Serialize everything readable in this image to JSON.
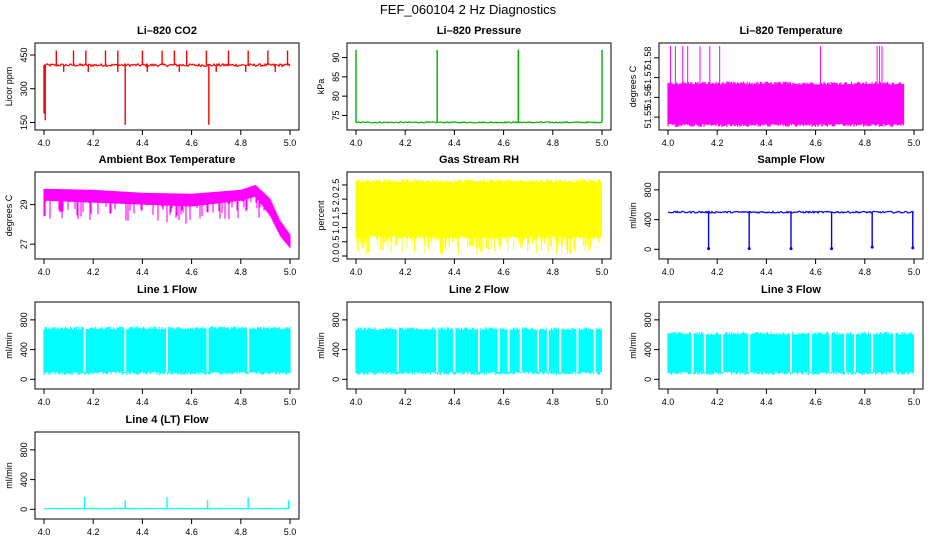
{
  "title": "FEF_060104  2 Hz Diagnostics",
  "colors": {
    "axis": "#000000"
  },
  "chart_data": [
    {
      "type": "line",
      "title": "Li–820 CO2",
      "ylabel": "Licor ppm",
      "color": "#ff0000",
      "x_ticks": [
        "4.0",
        "4.2",
        "4.4",
        "4.6",
        "4.8",
        "5.0"
      ],
      "xlim": [
        4.0,
        5.0
      ],
      "y_ticks": [
        150,
        300,
        450
      ],
      "y_tick_labels": [
        "150",
        "300",
        "450"
      ],
      "ylim": [
        130,
        490
      ],
      "series": [
        {
          "baseline": 405,
          "noise": 6,
          "spikes_up": [
            4.05,
            4.12,
            4.17,
            4.25,
            4.3,
            4.4,
            4.48,
            4.53,
            4.58,
            4.66,
            4.75,
            4.83,
            4.91,
            4.99
          ],
          "spike_up_to": 470,
          "dips": [
            [
              4.005,
              160
            ],
            [
              4.33,
              140
            ],
            [
              4.67,
              140
            ],
            [
              4.0,
              190
            ]
          ],
          "small_dips": [
            4.08,
            4.18,
            4.3,
            4.42,
            4.55,
            4.7,
            4.82,
            4.94
          ],
          "small_dip_to": 375
        }
      ]
    },
    {
      "type": "line",
      "title": "Li–820 Pressure",
      "ylabel": "kPa",
      "color": "#00b000",
      "x_ticks": [
        "4.0",
        "4.2",
        "4.4",
        "4.6",
        "4.8",
        "5.0"
      ],
      "xlim": [
        4.0,
        5.0
      ],
      "y_ticks": [
        75,
        80,
        85,
        90
      ],
      "y_tick_labels": [
        "75",
        "80",
        "85",
        "90"
      ],
      "ylim": [
        72,
        93
      ],
      "series": [
        {
          "baseline": 73.2,
          "noise": 0.15,
          "spikes_up": [
            4.0,
            4.33,
            4.66,
            4.66,
            5.0
          ],
          "spike_up_to": 92,
          "dips": [],
          "small_dips": [],
          "small_dip_to": 73
        }
      ]
    },
    {
      "type": "area",
      "title": "Li–820 Temperature",
      "ylabel": "degrees C",
      "color": "#ff00ff",
      "x_ticks": [
        "4.0",
        "4.2",
        "4.4",
        "4.6",
        "4.8",
        "5.0"
      ],
      "xlim": [
        4.0,
        5.0
      ],
      "y_ticks": [
        51.55,
        51.56,
        51.57,
        51.58
      ],
      "y_tick_labels": [
        "51.55",
        "51.56",
        "51.57",
        "51.58"
      ],
      "ylim": [
        51.545,
        51.586
      ],
      "band": {
        "x_from": 4.0,
        "x_to": 4.96,
        "low": 51.5465,
        "high": 51.5665
      },
      "series": [
        {
          "spikes_up": [
            4.01,
            4.03,
            4.06,
            4.08,
            4.13,
            4.17,
            4.21,
            4.62,
            4.85,
            4.86,
            4.87
          ],
          "spike_up_to": 51.586
        }
      ]
    },
    {
      "type": "line",
      "title": "Ambient Box Temperature",
      "ylabel": "degrees C",
      "color": "#ff00ff",
      "x_ticks": [
        "4.0",
        "4.2",
        "4.4",
        "4.6",
        "4.8",
        "5.0"
      ],
      "xlim": [
        4.0,
        5.0
      ],
      "y_ticks": [
        27,
        29
      ],
      "y_tick_labels": [
        "27",
        "29"
      ],
      "ylim": [
        26.4,
        30.5
      ],
      "envelope": [
        [
          4.0,
          29.8,
          29.2
        ],
        [
          4.2,
          29.75,
          29.1
        ],
        [
          4.4,
          29.6,
          29.0
        ],
        [
          4.6,
          29.55,
          28.9
        ],
        [
          4.8,
          29.75,
          29.2
        ],
        [
          4.86,
          30.0,
          29.4
        ],
        [
          4.92,
          29.3,
          28.4
        ],
        [
          4.96,
          28.2,
          27.4
        ],
        [
          5.0,
          27.5,
          26.8
        ]
      ],
      "dip_depth": 0.9
    },
    {
      "type": "area",
      "title": "Gas Stream RH",
      "ylabel": "percent",
      "color": "#ffff00",
      "x_ticks": [
        "4.0",
        "4.2",
        "4.4",
        "4.6",
        "4.8",
        "5.0"
      ],
      "xlim": [
        4.0,
        5.0
      ],
      "y_ticks": [
        0.0,
        0.5,
        1.0,
        1.5,
        2.0,
        2.5
      ],
      "y_tick_labels": [
        "0.0",
        "0.5",
        "1.0",
        "1.5",
        "2.0",
        "2.5"
      ],
      "ylim": [
        0.0,
        2.85
      ],
      "band": {
        "x_from": 4.0,
        "x_to": 5.0,
        "low": 0.7,
        "high": 2.6
      }
    },
    {
      "type": "line",
      "title": "Sample Flow",
      "ylabel": "ml/min",
      "color": "#0000ff",
      "x_ticks": [
        "4.0",
        "4.2",
        "4.4",
        "4.6",
        "4.8",
        "5.0"
      ],
      "xlim": [
        4.0,
        5.0
      ],
      "y_ticks": [
        0,
        400,
        800
      ],
      "y_tick_labels": [
        "0",
        "400",
        "800"
      ],
      "ylim": [
        -90,
        1000
      ],
      "series": [
        {
          "baseline": 500,
          "noise": 12,
          "dips": [
            [
              4.165,
              10
            ],
            [
              4.33,
              10
            ],
            [
              4.5,
              10
            ],
            [
              4.665,
              10
            ],
            [
              4.83,
              30
            ],
            [
              4.995,
              20
            ]
          ],
          "dip_to": 10
        }
      ]
    },
    {
      "type": "area",
      "title": "Line 1 Flow",
      "ylabel": "ml/min",
      "color": "#00ffff",
      "x_ticks": [
        "4.0",
        "4.2",
        "4.4",
        "4.6",
        "4.8",
        "5.0"
      ],
      "xlim": [
        4.0,
        5.0
      ],
      "y_ticks": [
        0,
        400,
        800
      ],
      "y_tick_labels": [
        "0",
        "400",
        "800"
      ],
      "ylim": [
        -90,
        1000
      ],
      "band": {
        "x_from": 4.0,
        "x_to": 5.0,
        "low": 100,
        "high": 670
      },
      "gaps": [
        4.165,
        4.33,
        4.5,
        4.665,
        4.83
      ]
    },
    {
      "type": "area",
      "title": "Line 2 Flow",
      "ylabel": "ml/min",
      "color": "#00ffff",
      "x_ticks": [
        "4.0",
        "4.2",
        "4.4",
        "4.6",
        "4.8",
        "5.0"
      ],
      "xlim": [
        4.0,
        5.0
      ],
      "y_ticks": [
        0,
        400,
        800
      ],
      "y_tick_labels": [
        "0",
        "400",
        "800"
      ],
      "ylim": [
        -90,
        1000
      ],
      "band": {
        "x_from": 4.0,
        "x_to": 5.0,
        "low": 100,
        "high": 660
      },
      "gaps": [
        4.17,
        4.33,
        4.4,
        4.5,
        4.58,
        4.62,
        4.67,
        4.74,
        4.78,
        4.83,
        4.9,
        4.97
      ]
    },
    {
      "type": "area",
      "title": "Line 3 Flow",
      "ylabel": "ml/min",
      "color": "#00ffff",
      "x_ticks": [
        "4.0",
        "4.2",
        "4.4",
        "4.6",
        "4.8",
        "5.0"
      ],
      "xlim": [
        4.0,
        5.0
      ],
      "y_ticks": [
        0,
        400,
        800
      ],
      "y_tick_labels": [
        "0",
        "400",
        "800"
      ],
      "ylim": [
        -90,
        1000
      ],
      "band": {
        "x_from": 4.0,
        "x_to": 5.0,
        "low": 100,
        "high": 600
      },
      "gaps": [
        4.1,
        4.15,
        4.22,
        4.33,
        4.5,
        4.58,
        4.66,
        4.72,
        4.76,
        4.83,
        4.92
      ]
    },
    {
      "type": "line",
      "title": "Line 4 (LT) Flow",
      "ylabel": "ml/min",
      "color": "#00ffff",
      "x_ticks": [
        "4.0",
        "4.2",
        "4.4",
        "4.6",
        "4.8",
        "5.0"
      ],
      "xlim": [
        4.0,
        5.0
      ],
      "y_ticks": [
        0,
        400,
        800
      ],
      "y_tick_labels": [
        "0",
        "400",
        "800"
      ],
      "ylim": [
        -90,
        1000
      ],
      "series": [
        {
          "baseline": 10,
          "noise": 3,
          "spikes_up": [
            [
              4.165,
              170
            ],
            [
              4.33,
              120
            ],
            [
              4.5,
              160
            ],
            [
              4.665,
              120
            ],
            [
              4.83,
              160
            ],
            [
              4.995,
              120
            ]
          ]
        }
      ]
    }
  ]
}
